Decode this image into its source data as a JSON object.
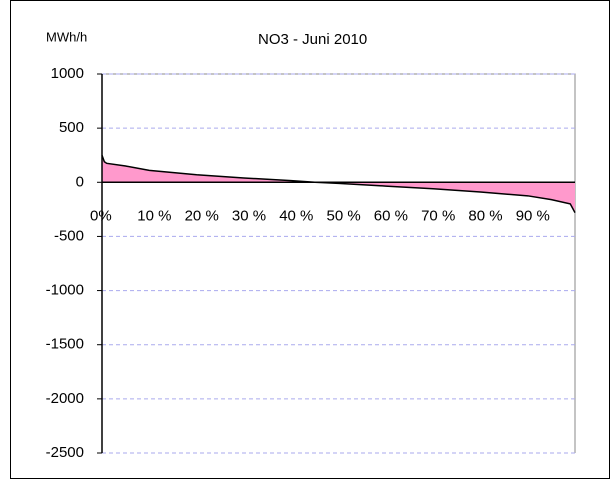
{
  "chart_data": {
    "type": "area",
    "title": "NO3  - Juni 2010",
    "y_label": "MWh/h",
    "x": [
      0,
      0.5,
      1,
      5,
      10,
      20,
      30,
      40,
      45,
      50,
      60,
      70,
      80,
      90,
      95,
      99,
      100
    ],
    "values": [
      250,
      190,
      175,
      150,
      110,
      70,
      40,
      15,
      0,
      -10,
      -35,
      -60,
      -90,
      -125,
      -160,
      -200,
      -280
    ],
    "color": "#ff99cc",
    "line_color": "#000000",
    "xlim": [
      0,
      100
    ],
    "xticks": [
      {
        "value": 0,
        "label": "0%"
      },
      {
        "value": 10,
        "label": "10 %"
      },
      {
        "value": 20,
        "label": "20 %"
      },
      {
        "value": 30,
        "label": "30 %"
      },
      {
        "value": 40,
        "label": "40 %"
      },
      {
        "value": 50,
        "label": "50 %"
      },
      {
        "value": 60,
        "label": "60 %"
      },
      {
        "value": 70,
        "label": "70 %"
      },
      {
        "value": 80,
        "label": "80 %"
      },
      {
        "value": 90,
        "label": "90 %"
      }
    ],
    "ylim": [
      -2500,
      1000
    ],
    "yticks": [
      1000,
      500,
      0,
      -500,
      -1000,
      -1500,
      -2000,
      -2500
    ],
    "grid": true
  }
}
